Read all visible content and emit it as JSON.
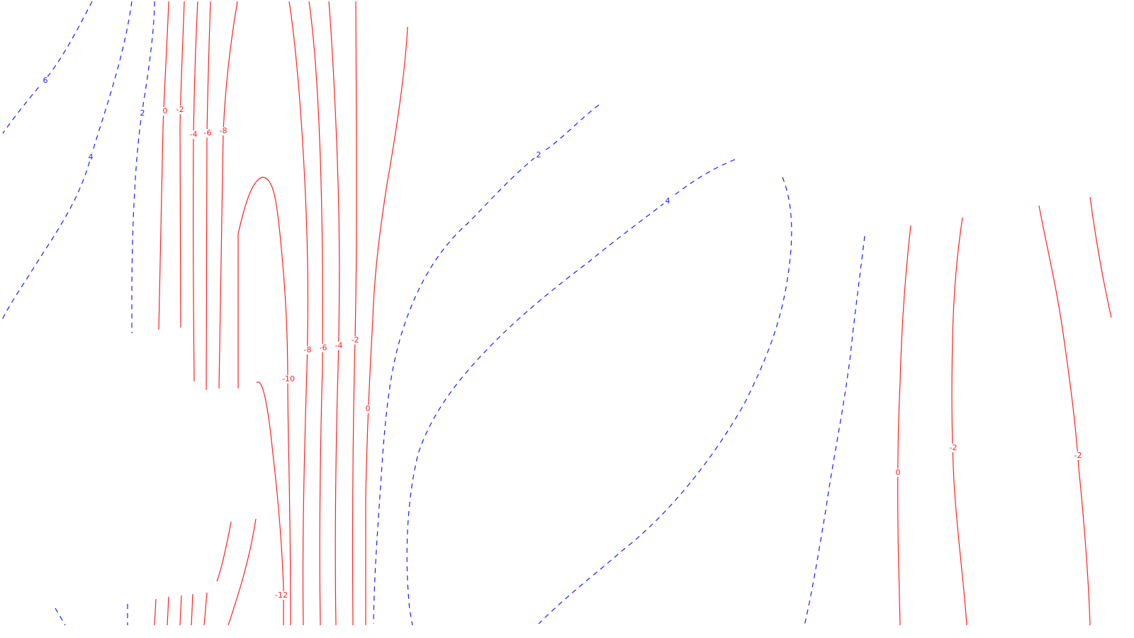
{
  "map": {
    "type": "contour",
    "colors": {
      "positive": "#1a1aff",
      "negative_or_zero": "#ff2020",
      "background": "#ffffff"
    },
    "positive_style": "dashed",
    "negative_or_zero_style": "solid",
    "contour_labels": [
      {
        "id": "pos-6",
        "text": "6",
        "sign": "positive"
      },
      {
        "id": "pos-2-left",
        "text": "2",
        "sign": "positive"
      },
      {
        "id": "pos-4-left",
        "text": "4",
        "sign": "positive"
      },
      {
        "id": "pos-2-center",
        "text": "2",
        "sign": "positive"
      },
      {
        "id": "pos-4-center",
        "text": "4",
        "sign": "positive"
      },
      {
        "id": "neg-0-top",
        "text": "0",
        "sign": "negative"
      },
      {
        "id": "neg-m2-top",
        "text": "-2",
        "sign": "negative"
      },
      {
        "id": "neg-m4-top",
        "text": "-4",
        "sign": "negative"
      },
      {
        "id": "neg-m6-top",
        "text": "-6",
        "sign": "negative"
      },
      {
        "id": "neg-m8-top",
        "text": "-8",
        "sign": "negative"
      },
      {
        "id": "neg-m8-mid",
        "text": "-8",
        "sign": "negative"
      },
      {
        "id": "neg-m6-mid",
        "text": "-6",
        "sign": "negative"
      },
      {
        "id": "neg-m4-mid",
        "text": "-4",
        "sign": "negative"
      },
      {
        "id": "neg-m2-mid",
        "text": "-2",
        "sign": "negative"
      },
      {
        "id": "neg-m10",
        "text": "-10",
        "sign": "negative"
      },
      {
        "id": "neg-0-mid",
        "text": "0",
        "sign": "negative"
      },
      {
        "id": "neg-m12",
        "text": "-12",
        "sign": "negative"
      },
      {
        "id": "neg-0-right",
        "text": "0",
        "sign": "negative"
      },
      {
        "id": "neg-m2-right1",
        "text": "-2",
        "sign": "negative"
      },
      {
        "id": "neg-m2-right2",
        "text": "-2",
        "sign": "negative"
      }
    ]
  }
}
